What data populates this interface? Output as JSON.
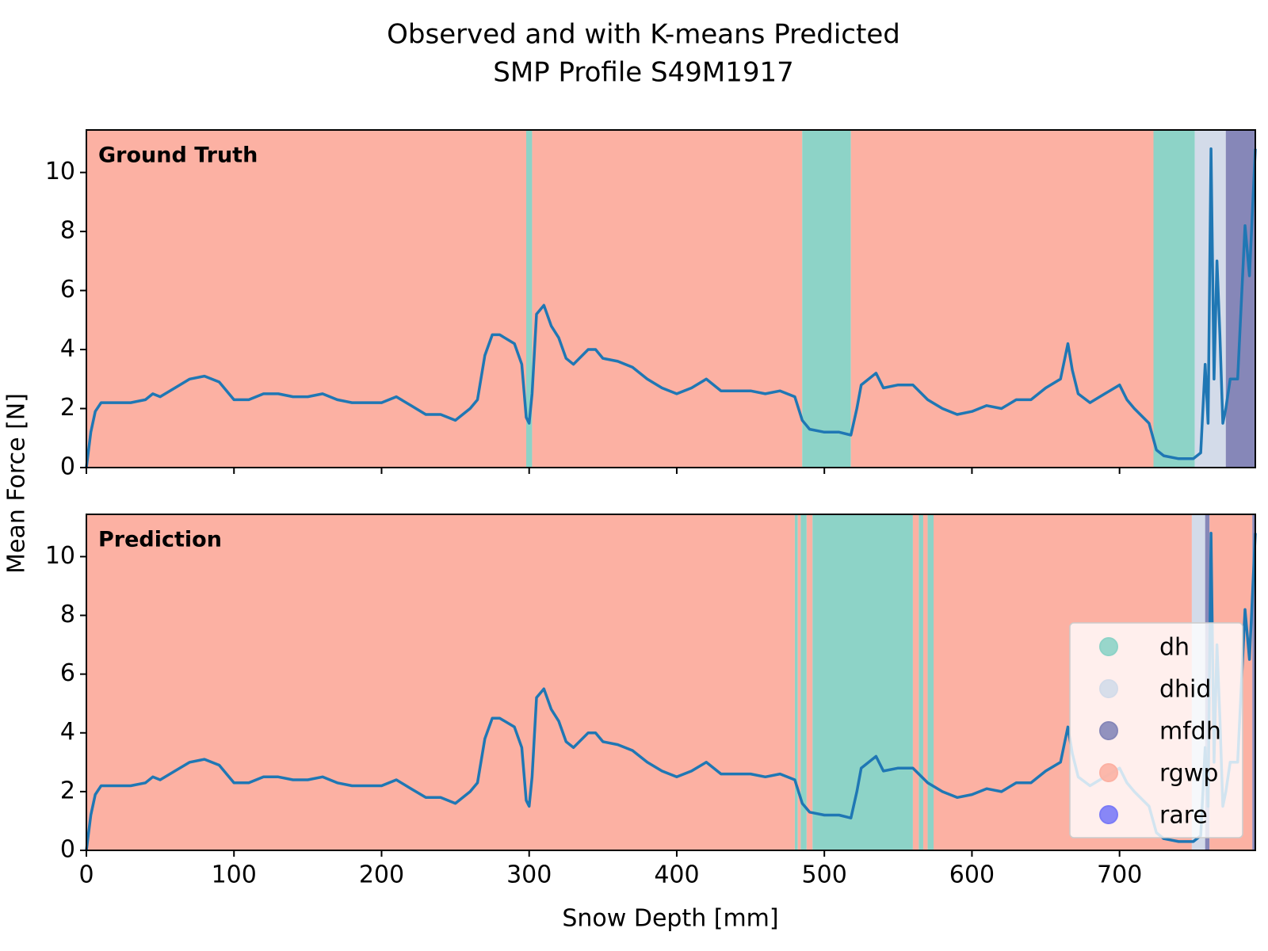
{
  "chart_data": {
    "type": "line",
    "title": [
      "Observed and with K-means Predicted",
      "SMP Profile S49M1917"
    ],
    "xlabel": "Snow Depth [mm]",
    "ylabel": "Mean Force [N]",
    "xlim": [
      0,
      792
    ],
    "ylim": [
      0,
      11.44
    ],
    "xticks": [
      0,
      100,
      200,
      300,
      400,
      500,
      600,
      700
    ],
    "yticks": [
      0,
      2,
      4,
      6,
      8,
      10
    ],
    "line_color": "#1f77b4",
    "x": [
      0,
      3,
      6,
      10,
      15,
      20,
      30,
      40,
      45,
      50,
      60,
      70,
      80,
      90,
      100,
      110,
      120,
      130,
      140,
      150,
      160,
      170,
      180,
      190,
      200,
      210,
      220,
      230,
      240,
      250,
      260,
      265,
      270,
      275,
      280,
      290,
      295,
      298,
      300,
      302,
      305,
      310,
      315,
      320,
      325,
      330,
      340,
      345,
      350,
      360,
      370,
      380,
      390,
      400,
      410,
      420,
      430,
      440,
      450,
      460,
      470,
      480,
      485,
      490,
      500,
      510,
      518,
      522,
      525,
      530,
      535,
      540,
      550,
      560,
      570,
      580,
      590,
      600,
      610,
      620,
      630,
      640,
      650,
      660,
      665,
      668,
      672,
      680,
      690,
      700,
      705,
      710,
      720,
      725,
      730,
      740,
      750,
      755,
      758,
      760,
      762,
      764,
      766,
      768,
      770,
      772,
      775,
      780,
      785,
      788,
      792
    ],
    "values": [
      0,
      1.2,
      1.9,
      2.2,
      2.2,
      2.2,
      2.2,
      2.3,
      2.5,
      2.4,
      2.7,
      3.0,
      3.1,
      2.9,
      2.3,
      2.3,
      2.5,
      2.5,
      2.4,
      2.4,
      2.5,
      2.3,
      2.2,
      2.2,
      2.2,
      2.4,
      2.1,
      1.8,
      1.8,
      1.6,
      2.0,
      2.3,
      3.8,
      4.5,
      4.5,
      4.2,
      3.5,
      1.7,
      1.5,
      2.5,
      5.2,
      5.5,
      4.8,
      4.4,
      3.7,
      3.5,
      4.0,
      4.0,
      3.7,
      3.6,
      3.4,
      3.0,
      2.7,
      2.5,
      2.7,
      3.0,
      2.6,
      2.6,
      2.6,
      2.5,
      2.6,
      2.4,
      1.6,
      1.3,
      1.2,
      1.2,
      1.1,
      2.0,
      2.8,
      3.0,
      3.2,
      2.7,
      2.8,
      2.8,
      2.3,
      2.0,
      1.8,
      1.9,
      2.1,
      2.0,
      2.3,
      2.3,
      2.7,
      3.0,
      4.2,
      3.3,
      2.5,
      2.2,
      2.5,
      2.8,
      2.3,
      2.0,
      1.5,
      0.6,
      0.4,
      0.3,
      0.3,
      0.5,
      3.5,
      1.5,
      10.8,
      3.0,
      7.0,
      4.5,
      1.5,
      2.0,
      3.0,
      3.0,
      8.2,
      6.5,
      10.8
    ],
    "classes": [
      {
        "name": "dh",
        "color": "#8dd3c7"
      },
      {
        "name": "dhid",
        "color": "#d3dbe9"
      },
      {
        "name": "mfdh",
        "color": "#8687b8"
      },
      {
        "name": "rgwp",
        "color": "#fcb1a3"
      },
      {
        "name": "rare",
        "color": "#7b7bf7"
      }
    ],
    "legend": "lower right",
    "panels": [
      {
        "label": "Ground Truth",
        "segments": [
          {
            "class": "rgwp",
            "start": 0,
            "end": 298
          },
          {
            "class": "dh",
            "start": 298,
            "end": 302
          },
          {
            "class": "rgwp",
            "start": 302,
            "end": 485
          },
          {
            "class": "dh",
            "start": 485,
            "end": 518
          },
          {
            "class": "rgwp",
            "start": 518,
            "end": 723
          },
          {
            "class": "dh",
            "start": 723,
            "end": 751
          },
          {
            "class": "dhid",
            "start": 751,
            "end": 772
          },
          {
            "class": "mfdh",
            "start": 772,
            "end": 792
          }
        ]
      },
      {
        "label": "Prediction",
        "segments": [
          {
            "class": "rgwp",
            "start": 0,
            "end": 480
          },
          {
            "class": "dh",
            "start": 480,
            "end": 482
          },
          {
            "class": "rgwp",
            "start": 482,
            "end": 484
          },
          {
            "class": "dh",
            "start": 484,
            "end": 488
          },
          {
            "class": "rgwp",
            "start": 488,
            "end": 492
          },
          {
            "class": "dh",
            "start": 492,
            "end": 560
          },
          {
            "class": "rgwp",
            "start": 560,
            "end": 564
          },
          {
            "class": "dh",
            "start": 564,
            "end": 567
          },
          {
            "class": "rgwp",
            "start": 567,
            "end": 570
          },
          {
            "class": "dh",
            "start": 570,
            "end": 574
          },
          {
            "class": "rgwp",
            "start": 574,
            "end": 749
          },
          {
            "class": "dhid",
            "start": 749,
            "end": 758
          },
          {
            "class": "mfdh",
            "start": 758,
            "end": 761
          },
          {
            "class": "rgwp",
            "start": 761,
            "end": 790
          },
          {
            "class": "mfdh",
            "start": 790,
            "end": 792
          }
        ]
      }
    ]
  }
}
